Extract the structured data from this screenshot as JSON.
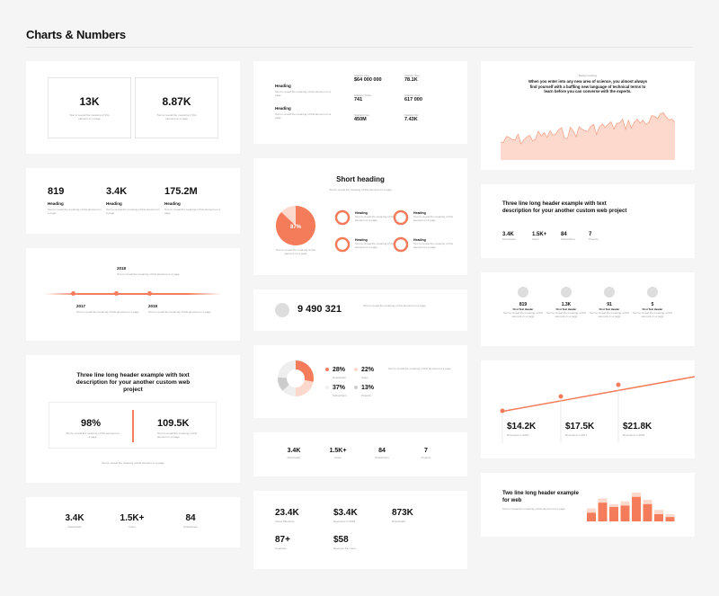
{
  "page_title": "Charts & Numbers",
  "accent": "#f47c5a",
  "accent_light": "#fdd8cc",
  "lorem_short": "Text to reveal the meaning of this element on a page",
  "c1": {
    "v1": "13K",
    "v2": "8.87K"
  },
  "c2": {
    "stats": [
      {
        "value": "819",
        "heading": "Heading"
      },
      {
        "value": "3.4K",
        "heading": "Heading"
      },
      {
        "value": "175.2M",
        "heading": "Heading"
      }
    ]
  },
  "c3": {
    "years": [
      "2018",
      "2017",
      "2019"
    ]
  },
  "c4": {
    "heading": "Three line long header example with text description for your another custom web project",
    "v1": "98%",
    "v2": "109.5K"
  },
  "c5": {
    "stats": [
      {
        "value": "3.4K",
        "label": "Downloads"
      },
      {
        "value": "1.5K+",
        "label": "Users"
      },
      {
        "value": "84",
        "label": "Subscribers"
      }
    ]
  },
  "m1": {
    "h1": "Heading",
    "h2": "Heading",
    "grid": [
      {
        "label": "Statistic One",
        "value": "$64 000 000"
      },
      {
        "label": "Statistic Two",
        "value": "78.1K"
      },
      {
        "label": "Statistic Three",
        "value": "741"
      },
      {
        "label": "Statistic Four",
        "value": "617 000"
      },
      {
        "label": "Statistic Five",
        "value": "450M"
      },
      {
        "label": "Statistic Six",
        "value": "7.43K"
      }
    ]
  },
  "m2": {
    "heading": "Short heading",
    "pie_label": "87%",
    "pie_value": 0.87,
    "items": [
      {
        "heading": "Heading"
      },
      {
        "heading": "Heading"
      },
      {
        "heading": "Heading"
      },
      {
        "heading": "Heading"
      }
    ]
  },
  "m3": {
    "value": "9 490 321"
  },
  "m4": {
    "items": [
      {
        "value": "28%",
        "label": "Downloads"
      },
      {
        "value": "22%",
        "label": "Users"
      },
      {
        "value": "37%",
        "label": "Subscribers"
      },
      {
        "value": "13%",
        "label": "Projects"
      }
    ]
  },
  "m5": {
    "stats": [
      {
        "value": "3.4K",
        "label": "Downloads"
      },
      {
        "value": "1.5K+",
        "label": "Users"
      },
      {
        "value": "84",
        "label": "Subscribers"
      },
      {
        "value": "7",
        "label": "Projects"
      }
    ]
  },
  "m6": {
    "stats": [
      {
        "value": "23.4K",
        "label": "Active Members"
      },
      {
        "value": "$3.4K",
        "label": "Revenues in 2018"
      },
      {
        "value": "873K",
        "label": "Downloads"
      },
      {
        "value": "87+",
        "label": "Countries"
      },
      {
        "value": "$58",
        "label": "Revenue Per Hour"
      }
    ]
  },
  "r1": {
    "small": "Badge heading",
    "heading": "When you enter into any new area of science, you almost always find yourself with a baffling new language of technical terms to learn before you can converse with the experts."
  },
  "r2": {
    "heading": "Three line long header example with text description for your another custom web project",
    "stats": [
      {
        "value": "3.4K",
        "label": "Downloads"
      },
      {
        "value": "1.5K+",
        "label": "Users"
      },
      {
        "value": "84",
        "label": "Subscribers"
      },
      {
        "value": "7",
        "label": "Projects"
      }
    ]
  },
  "r3": {
    "stats": [
      {
        "value": "819",
        "label": "First Text Header"
      },
      {
        "value": "1.3K",
        "label": "First Text Header"
      },
      {
        "value": "91",
        "label": "First Text Header"
      },
      {
        "value": "5",
        "label": "First Text Header"
      }
    ]
  },
  "r4": {
    "stats": [
      {
        "value": "$14.2K",
        "label": "Revenues in 2016"
      },
      {
        "value": "$17.5K",
        "label": "Revenues in 2017"
      },
      {
        "value": "$21.8K",
        "label": "Revenues in 2018"
      }
    ]
  },
  "r5": {
    "heading": "Two line long header example for web",
    "bars": [
      {
        "a": 0.45,
        "b": 0.3
      },
      {
        "a": 0.8,
        "b": 0.65
      },
      {
        "a": 0.6,
        "b": 0.5
      },
      {
        "a": 0.7,
        "b": 0.55
      },
      {
        "a": 1.0,
        "b": 0.85
      },
      {
        "a": 0.75,
        "b": 0.6
      },
      {
        "a": 0.4,
        "b": 0.25
      },
      {
        "a": 0.25,
        "b": 0.15
      }
    ]
  }
}
